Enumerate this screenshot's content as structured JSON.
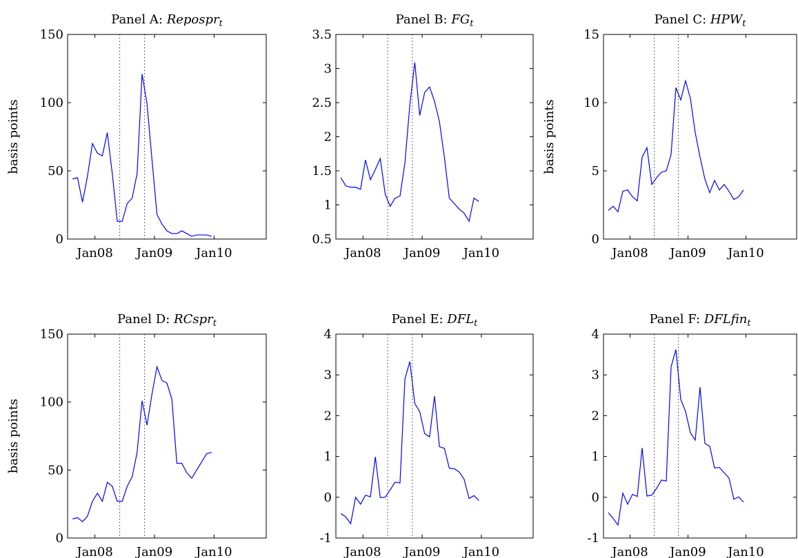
{
  "chart_data": [
    {
      "type": "line",
      "title_prefix": "Panel A: ",
      "title_math": "Repospr",
      "title_sub": "t",
      "ylabel": "basis points",
      "ylim": [
        0,
        150
      ],
      "yticks": [
        0,
        50,
        100,
        150
      ],
      "ytick_labels": [
        "0",
        "50",
        "100",
        "150"
      ],
      "xlim": [
        0,
        40
      ],
      "xticks": [
        5.5,
        17.5,
        29.5
      ],
      "xtick_labels": [
        "Jan08",
        "Jan09",
        "Jan10"
      ],
      "vlines": [
        10.5,
        15.5
      ],
      "series": [
        {
          "values": [
            44,
            45,
            27,
            46,
            70,
            63,
            61,
            78,
            48,
            13,
            13,
            26,
            30,
            48,
            121,
            99,
            58,
            18,
            11,
            6,
            4,
            4,
            6,
            4,
            2,
            3,
            3,
            3,
            2
          ]
        }
      ]
    },
    {
      "type": "line",
      "title_prefix": "Panel B: ",
      "title_math": "FG",
      "title_sub": "t",
      "ylabel": "",
      "ylim": [
        0.5,
        3.5
      ],
      "yticks": [
        0.5,
        1,
        1.5,
        2,
        2.5,
        3,
        3.5
      ],
      "ytick_labels": [
        "0.5",
        "1",
        "1.5",
        "2",
        "2.5",
        "3",
        "3.5"
      ],
      "xlim": [
        0,
        40
      ],
      "xticks": [
        5.5,
        17.5,
        29.5
      ],
      "xtick_labels": [
        "Jan08",
        "Jan09",
        "Jan10"
      ],
      "vlines": [
        10.5,
        15.5
      ],
      "series": [
        {
          "values": [
            1.4,
            1.28,
            1.26,
            1.26,
            1.23,
            1.66,
            1.37,
            1.52,
            1.68,
            1.16,
            0.98,
            1.1,
            1.13,
            1.62,
            2.47,
            3.09,
            2.31,
            2.65,
            2.73,
            2.52,
            2.22,
            1.7,
            1.1,
            1.02,
            0.94,
            0.88,
            0.76,
            1.1,
            1.05
          ]
        }
      ]
    },
    {
      "type": "line",
      "title_prefix": "Panel C: ",
      "title_math": "HPW",
      "title_sub": "t",
      "ylabel": "basis points",
      "ylim": [
        0,
        15
      ],
      "yticks": [
        0,
        5,
        10,
        15
      ],
      "ytick_labels": [
        "0",
        "5",
        "10",
        "15"
      ],
      "xlim": [
        0,
        40
      ],
      "xticks": [
        5.5,
        17.5,
        29.5
      ],
      "xtick_labels": [
        "Jan08",
        "Jan09",
        "Jan10"
      ],
      "vlines": [
        10.5,
        15.5
      ],
      "series": [
        {
          "values": [
            2.1,
            2.4,
            2.0,
            3.5,
            3.6,
            3.1,
            2.8,
            6.0,
            6.7,
            4.0,
            4.5,
            4.9,
            5.0,
            6.2,
            11.1,
            10.2,
            11.6,
            10.3,
            7.8,
            6.0,
            4.4,
            3.4,
            4.3,
            3.6,
            4.0,
            3.5,
            2.9,
            3.1,
            3.6
          ]
        }
      ]
    },
    {
      "type": "line",
      "title_prefix": "Panel D: ",
      "title_math": "RCspr",
      "title_sub": "t",
      "ylabel": "basis points",
      "ylim": [
        0,
        150
      ],
      "yticks": [
        0,
        50,
        100,
        150
      ],
      "ytick_labels": [
        "0",
        "50",
        "100",
        "150"
      ],
      "xlim": [
        0,
        40
      ],
      "xticks": [
        5.5,
        17.5,
        29.5
      ],
      "xtick_labels": [
        "Jan08",
        "Jan09",
        "Jan10"
      ],
      "vlines": [
        10.5,
        15.5
      ],
      "series": [
        {
          "values": [
            14,
            15,
            12,
            16,
            27,
            33,
            27,
            41,
            38,
            27,
            27,
            38,
            45,
            63,
            101,
            83,
            106,
            126,
            116,
            114,
            102,
            55,
            55,
            48,
            44,
            50,
            56,
            62,
            63
          ]
        }
      ]
    },
    {
      "type": "line",
      "title_prefix": "Panel E: ",
      "title_math": "DFL",
      "title_sub": "t",
      "ylabel": "",
      "ylim": [
        -1,
        4
      ],
      "yticks": [
        -1,
        0,
        1,
        2,
        3,
        4
      ],
      "ytick_labels": [
        "-1",
        "0",
        "1",
        "2",
        "3",
        "4"
      ],
      "xlim": [
        0,
        40
      ],
      "xticks": [
        5.5,
        17.5,
        29.5
      ],
      "xtick_labels": [
        "Jan08",
        "Jan09",
        "Jan10"
      ],
      "vlines": [
        10.5,
        15.5
      ],
      "series": [
        {
          "values": [
            -0.4,
            -0.48,
            -0.65,
            0.0,
            -0.17,
            0.05,
            0.01,
            0.99,
            -0.01,
            0.0,
            0.18,
            0.37,
            0.35,
            2.9,
            3.33,
            2.3,
            2.1,
            1.56,
            1.48,
            2.48,
            1.24,
            1.2,
            0.71,
            0.7,
            0.62,
            0.44,
            -0.03,
            0.04,
            -0.08
          ]
        }
      ]
    },
    {
      "type": "line",
      "title_prefix": "Panel F: ",
      "title_math": "DFLfin",
      "title_sub": "t",
      "ylabel": "",
      "ylim": [
        -1,
        4
      ],
      "yticks": [
        -1,
        0,
        1,
        2,
        3,
        4
      ],
      "ytick_labels": [
        "-1",
        "0",
        "1",
        "2",
        "3",
        "4"
      ],
      "xlim": [
        0,
        40
      ],
      "xticks": [
        5.5,
        17.5,
        29.5
      ],
      "xtick_labels": [
        "Jan08",
        "Jan09",
        "Jan10"
      ],
      "vlines": [
        10.5,
        15.5
      ],
      "series": [
        {
          "values": [
            -0.38,
            -0.52,
            -0.68,
            0.1,
            -0.17,
            0.07,
            0.02,
            1.21,
            0.03,
            0.05,
            0.22,
            0.42,
            0.4,
            3.2,
            3.62,
            2.4,
            2.1,
            1.58,
            1.4,
            2.7,
            1.32,
            1.25,
            0.72,
            0.73,
            0.6,
            0.47,
            -0.05,
            0.01,
            -0.12
          ]
        }
      ]
    }
  ]
}
